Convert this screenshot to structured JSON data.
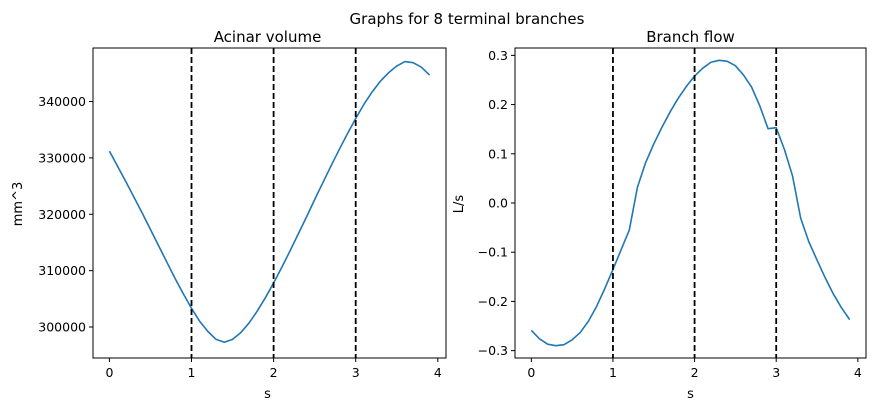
{
  "figure": {
    "suptitle": "Graphs for 8 terminal branches"
  },
  "colors": {
    "series": "#1f77b4",
    "vline": "#000000",
    "axes": "#000000"
  },
  "chart_data": [
    {
      "type": "line",
      "title": "Acinar volume",
      "xlabel": "s",
      "ylabel": "mm^3",
      "xlim": [
        -0.2,
        4.1
      ],
      "ylim": [
        294500,
        349500
      ],
      "xticks": [
        0,
        1,
        2,
        3,
        4
      ],
      "xtick_labels": [
        "0",
        "1",
        "2",
        "3",
        "4"
      ],
      "yticks": [
        300000,
        310000,
        320000,
        330000,
        340000
      ],
      "ytick_labels": [
        "300000",
        "310000",
        "320000",
        "330000",
        "340000"
      ],
      "vlines": [
        1,
        2,
        3
      ],
      "grid": false,
      "series": [
        {
          "x": [
            0,
            0.1,
            0.2,
            0.3,
            0.4,
            0.5,
            0.6,
            0.7,
            0.8,
            0.9,
            1.0,
            1.1,
            1.2,
            1.3,
            1.4,
            1.5,
            1.6,
            1.7,
            1.8,
            1.9,
            2.0,
            2.1,
            2.2,
            2.3,
            2.4,
            2.5,
            2.6,
            2.7,
            2.8,
            2.9,
            3.0,
            3.1,
            3.2,
            3.3,
            3.4,
            3.5,
            3.6,
            3.7,
            3.8,
            3.9
          ],
          "y": [
            331200,
            328500,
            325800,
            323000,
            320200,
            317300,
            314400,
            311500,
            308600,
            305900,
            303300,
            301000,
            299200,
            297800,
            297300,
            297800,
            299000,
            300700,
            302800,
            305200,
            307800,
            310600,
            313500,
            316500,
            319500,
            322600,
            325600,
            328600,
            331500,
            334300,
            337000,
            339500,
            341700,
            343600,
            345100,
            346300,
            347100,
            346900,
            346100,
            344700
          ]
        }
      ]
    },
    {
      "type": "line",
      "title": "Branch flow",
      "xlabel": "s",
      "ylabel": "L/s",
      "xlim": [
        -0.2,
        4.1
      ],
      "ylim": [
        -0.315,
        0.315
      ],
      "xticks": [
        0,
        1,
        2,
        3,
        4
      ],
      "xtick_labels": [
        "0",
        "1",
        "2",
        "3",
        "4"
      ],
      "yticks": [
        -0.3,
        -0.2,
        -0.1,
        0.0,
        0.1,
        0.2,
        0.3
      ],
      "ytick_labels": [
        "−0.3",
        "−0.2",
        "−0.1",
        "0.0",
        "0.1",
        "0.2",
        "0.3"
      ],
      "vlines": [
        1,
        2,
        3
      ],
      "grid": false,
      "series": [
        {
          "x": [
            0,
            0.1,
            0.2,
            0.3,
            0.4,
            0.5,
            0.6,
            0.7,
            0.8,
            0.9,
            1.0,
            1.1,
            1.2,
            1.3,
            1.4,
            1.5,
            1.6,
            1.7,
            1.8,
            1.9,
            2.0,
            2.1,
            2.2,
            2.3,
            2.4,
            2.5,
            2.6,
            2.7,
            2.8,
            2.9,
            3.0,
            3.1,
            3.2,
            3.3,
            3.4,
            3.5,
            3.6,
            3.7,
            3.8,
            3.9
          ],
          "y": [
            -0.259,
            -0.276,
            -0.287,
            -0.29,
            -0.288,
            -0.278,
            -0.263,
            -0.24,
            -0.21,
            -0.174,
            -0.135,
            -0.095,
            -0.055,
            0.032,
            0.082,
            0.12,
            0.154,
            0.185,
            0.213,
            0.237,
            0.258,
            0.274,
            0.286,
            0.29,
            0.288,
            0.279,
            0.26,
            0.235,
            0.197,
            0.151,
            0.153,
            0.109,
            0.055,
            -0.031,
            -0.079,
            -0.116,
            -0.152,
            -0.185,
            -0.213,
            -0.237
          ]
        }
      ]
    }
  ]
}
